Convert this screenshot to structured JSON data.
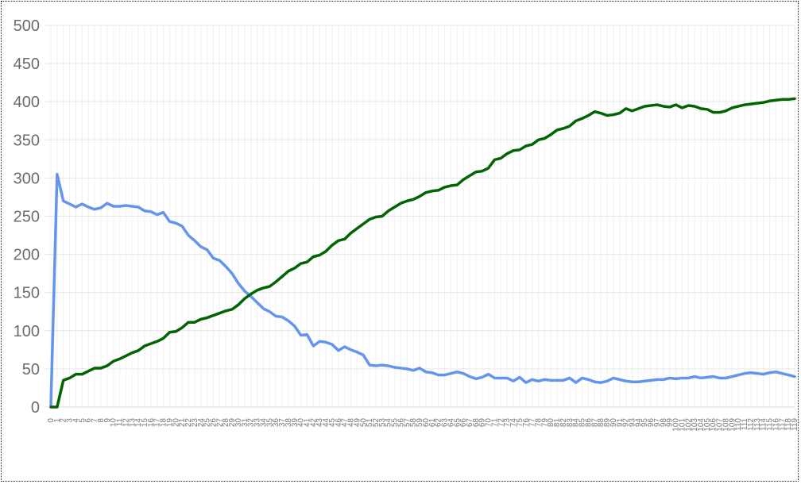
{
  "chart_data": {
    "type": "line",
    "title": "",
    "xlabel": "",
    "ylabel": "",
    "ylim": [
      0,
      500
    ],
    "y_ticks": [
      0,
      50,
      100,
      150,
      200,
      250,
      300,
      350,
      400,
      450,
      500
    ],
    "grid": true,
    "legend": "none",
    "point_count": 120,
    "series": [
      {
        "name": "series-blue",
        "color": "#6495ED",
        "values": [
          2,
          305,
          270,
          266,
          262,
          266,
          262,
          259,
          261,
          267,
          263,
          263,
          264,
          263,
          262,
          257,
          256,
          252,
          255,
          243,
          241,
          237,
          225,
          218,
          210,
          206,
          195,
          192,
          184,
          175,
          162,
          152,
          145,
          137,
          129,
          125,
          119,
          118,
          113,
          106,
          94,
          95,
          80,
          86,
          85,
          82,
          74,
          79,
          75,
          72,
          68,
          55,
          54,
          55,
          54,
          52,
          51,
          50,
          48,
          51,
          46,
          45,
          42,
          42,
          44,
          46,
          44,
          40,
          37,
          39,
          43,
          38,
          38,
          38,
          34,
          39,
          32,
          36,
          34,
          36,
          35,
          35,
          35,
          38,
          32,
          38,
          36,
          33,
          32,
          34,
          38,
          36,
          34,
          33,
          33,
          34,
          35,
          36,
          36,
          38,
          37,
          38,
          38,
          40,
          38,
          39,
          40,
          38,
          38,
          40,
          42,
          44,
          45,
          44,
          43,
          45,
          46,
          44,
          42,
          40
        ]
      },
      {
        "name": "series-green",
        "color": "#006400",
        "values": [
          0,
          0,
          35,
          38,
          43,
          43,
          47,
          51,
          51,
          54,
          60,
          63,
          67,
          71,
          74,
          80,
          83,
          86,
          90,
          98,
          99,
          104,
          111,
          111,
          115,
          117,
          120,
          123,
          126,
          128,
          134,
          142,
          148,
          153,
          156,
          158,
          164,
          171,
          178,
          182,
          188,
          190,
          197,
          199,
          204,
          212,
          218,
          220,
          228,
          234,
          240,
          246,
          249,
          250,
          257,
          262,
          267,
          270,
          272,
          276,
          281,
          283,
          284,
          288,
          290,
          291,
          298,
          303,
          308,
          309,
          313,
          324,
          326,
          332,
          336,
          337,
          342,
          344,
          350,
          352,
          357,
          363,
          365,
          368,
          375,
          378,
          382,
          387,
          385,
          382,
          383,
          385,
          391,
          388,
          391,
          394,
          395,
          396,
          394,
          393,
          396,
          392,
          395,
          394,
          391,
          390,
          386,
          386,
          388,
          392,
          394,
          396,
          397,
          398,
          399,
          401,
          402,
          403,
          403,
          404
        ]
      }
    ]
  }
}
